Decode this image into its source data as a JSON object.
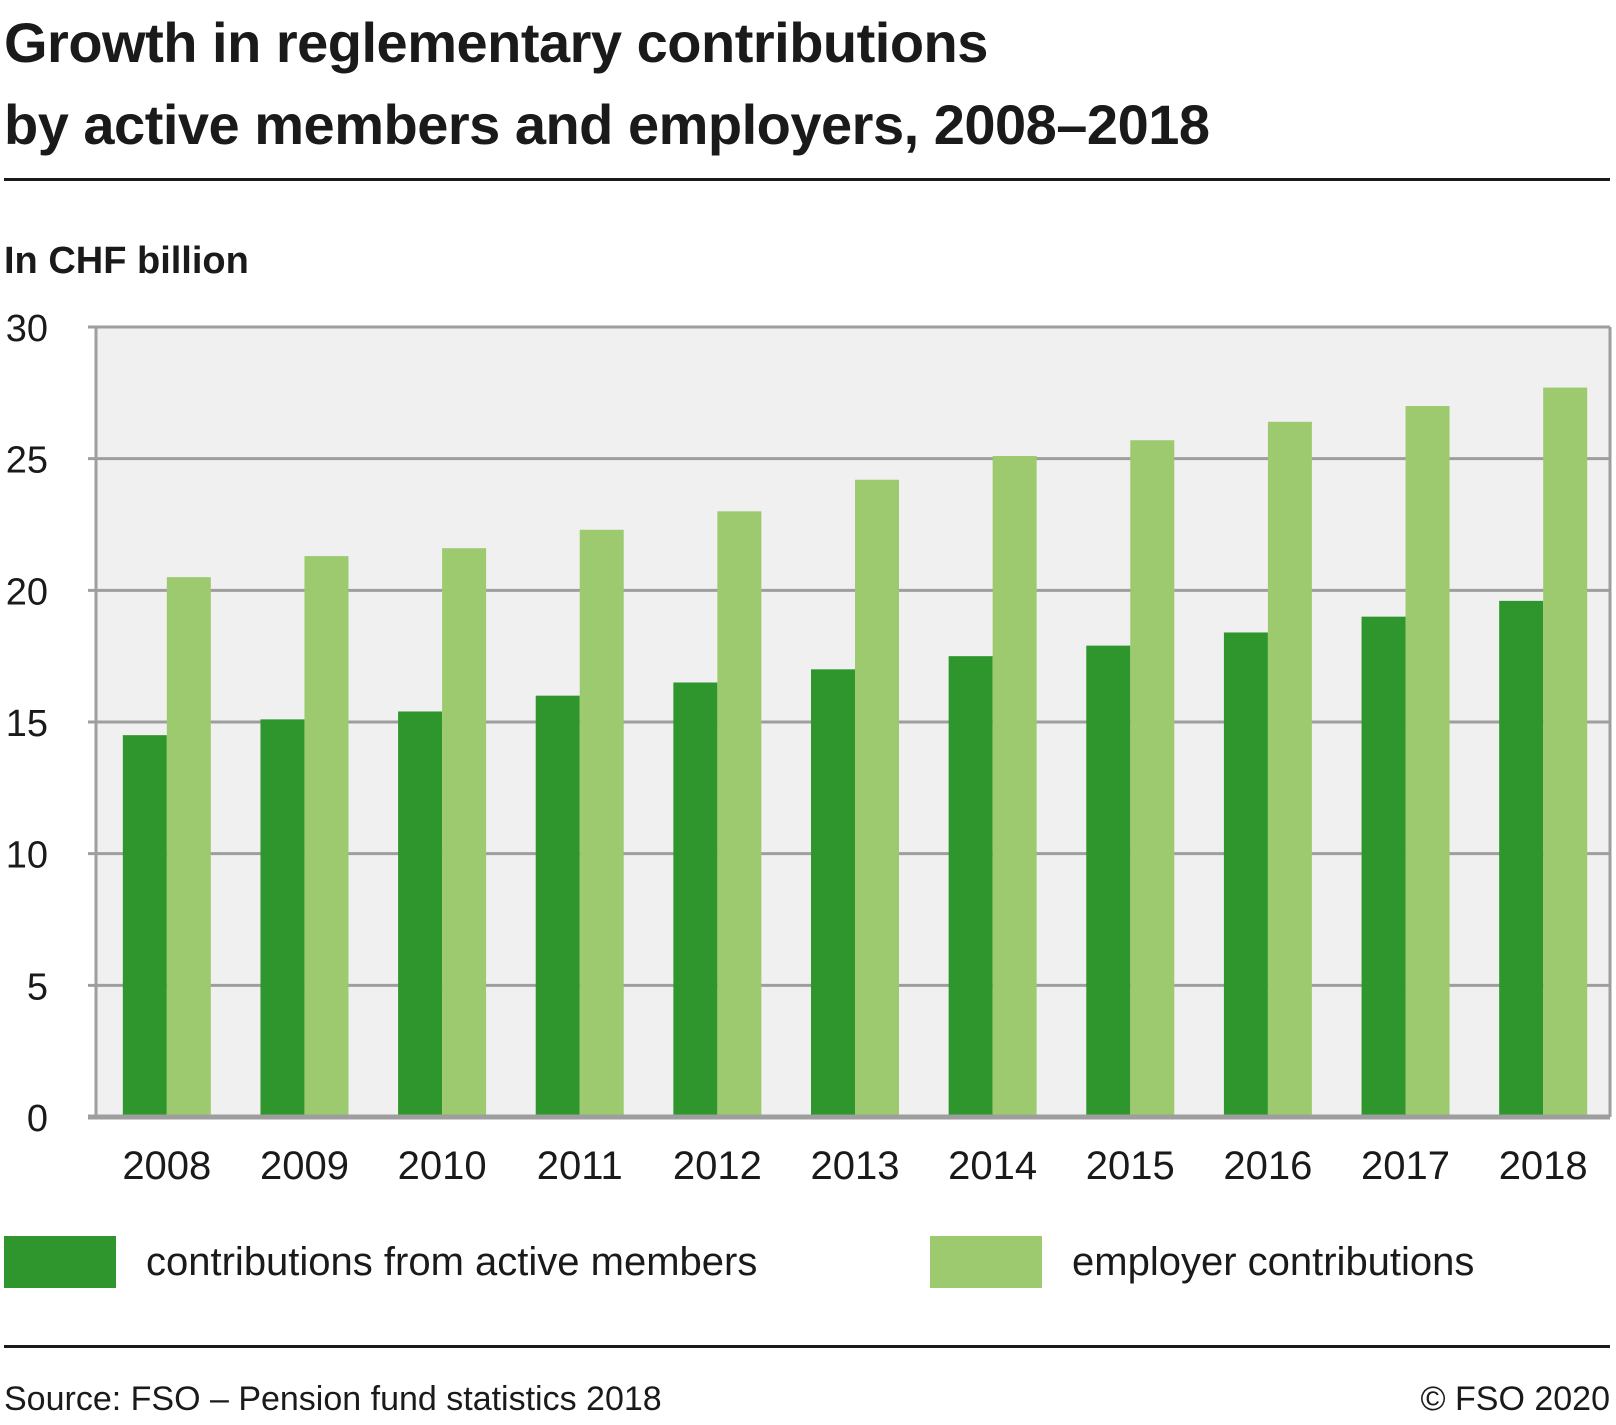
{
  "header": {
    "title_line1": "Growth in reglementary contributions",
    "title_line2": "by active members and employers, 2008–2018",
    "unit_label": "In CHF billion"
  },
  "footer": {
    "source": "Source: FSO – Pension fund statistics 2018",
    "copyright": "© FSO 2020"
  },
  "colors": {
    "active_members": "#2e962c",
    "employer": "#9dca6e",
    "plot_background": "#f0f0f0",
    "gridline": "#9e9e9e"
  },
  "chart_data": {
    "type": "bar",
    "title": "Growth in reglementary contributions by active members and employers, 2008–2018",
    "xlabel": "",
    "ylabel": "In CHF billion",
    "ylim": [
      0,
      30
    ],
    "yticks": [
      0,
      5,
      10,
      15,
      20,
      25,
      30
    ],
    "grid": true,
    "legend_position": "bottom",
    "categories": [
      "2008",
      "2009",
      "2010",
      "2011",
      "2012",
      "2013",
      "2014",
      "2015",
      "2016",
      "2017",
      "2018"
    ],
    "series": [
      {
        "name": "contributions from active members",
        "color": "#2e962c",
        "values": [
          14.5,
          15.1,
          15.4,
          16.0,
          16.5,
          17.0,
          17.5,
          17.9,
          18.4,
          19.0,
          19.6
        ]
      },
      {
        "name": "employer contributions",
        "color": "#9dca6e",
        "values": [
          20.5,
          21.3,
          21.6,
          22.3,
          23.0,
          24.2,
          25.1,
          25.7,
          26.4,
          27.0,
          27.7
        ]
      }
    ]
  }
}
